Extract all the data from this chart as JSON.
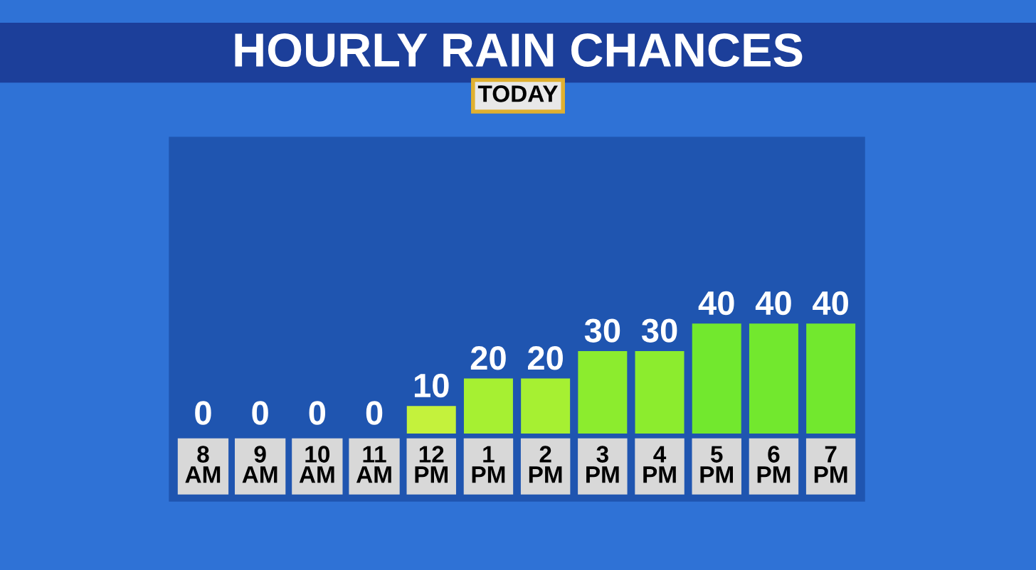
{
  "chart_data": {
    "type": "bar",
    "title": "HOURLY RAIN CHANCES",
    "subtitle": "TODAY",
    "categories": [
      "8\nAM",
      "9\nAM",
      "10\nAM",
      "11\nAM",
      "12\nPM",
      "1\nPM",
      "2\nPM",
      "3\nPM",
      "4\nPM",
      "5\nPM",
      "6\nPM",
      "7\nPM"
    ],
    "values": [
      0,
      0,
      0,
      0,
      10,
      20,
      20,
      30,
      30,
      40,
      40,
      40
    ],
    "colors": [
      "#eef27a",
      "#eef27a",
      "#eef27a",
      "#eef27a",
      "#c4f23c",
      "#a6f032",
      "#a6f032",
      "#8cec2e",
      "#8cec2e",
      "#72e82e",
      "#72e82e",
      "#72e82e"
    ],
    "data_labels": true
  }
}
